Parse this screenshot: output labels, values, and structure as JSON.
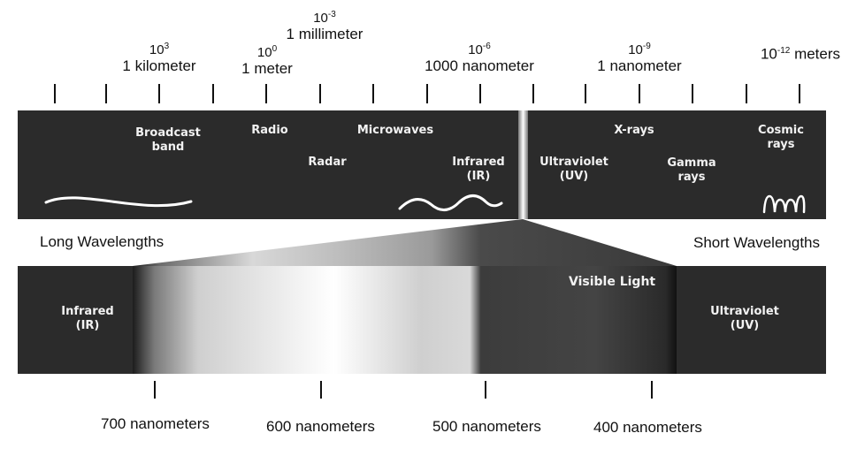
{
  "scale": {
    "labels": [
      {
        "exp_base": "10",
        "exp_power": "3",
        "name": "1 kilometer"
      },
      {
        "exp_base": "10",
        "exp_power": "0",
        "name": "1 meter"
      },
      {
        "exp_base": "10",
        "exp_power": "-3",
        "name": "1 millimeter"
      },
      {
        "exp_base": "10",
        "exp_power": "-6",
        "name": "1000 nanometer"
      },
      {
        "exp_base": "10",
        "exp_power": "-9",
        "name": "1 nanometer"
      },
      {
        "exp_base": "10",
        "exp_power": "-12",
        "name": "meters"
      }
    ]
  },
  "spectrum": {
    "bands": [
      "Broadcast\nband",
      "Radio",
      "Radar",
      "Microwaves",
      "Infrared\n(IR)",
      "Ultraviolet\n(UV)",
      "X-rays",
      "Gamma\nrays",
      "Cosmic\nrays"
    ]
  },
  "sides": {
    "long": "Long Wavelengths",
    "short": "Short Wavelengths"
  },
  "visible": {
    "title": "Visible Light",
    "left_label": "Infrared\n(IR)",
    "right_label": "Ultraviolet\n(UV)",
    "nm_labels": [
      "700 nanometers",
      "600 nanometers",
      "500 nanometers",
      "400 nanometers"
    ]
  },
  "colors": {
    "band_bg": "#2b2b2b",
    "text_light": "#f2f2f2",
    "text_dark": "#111111"
  }
}
